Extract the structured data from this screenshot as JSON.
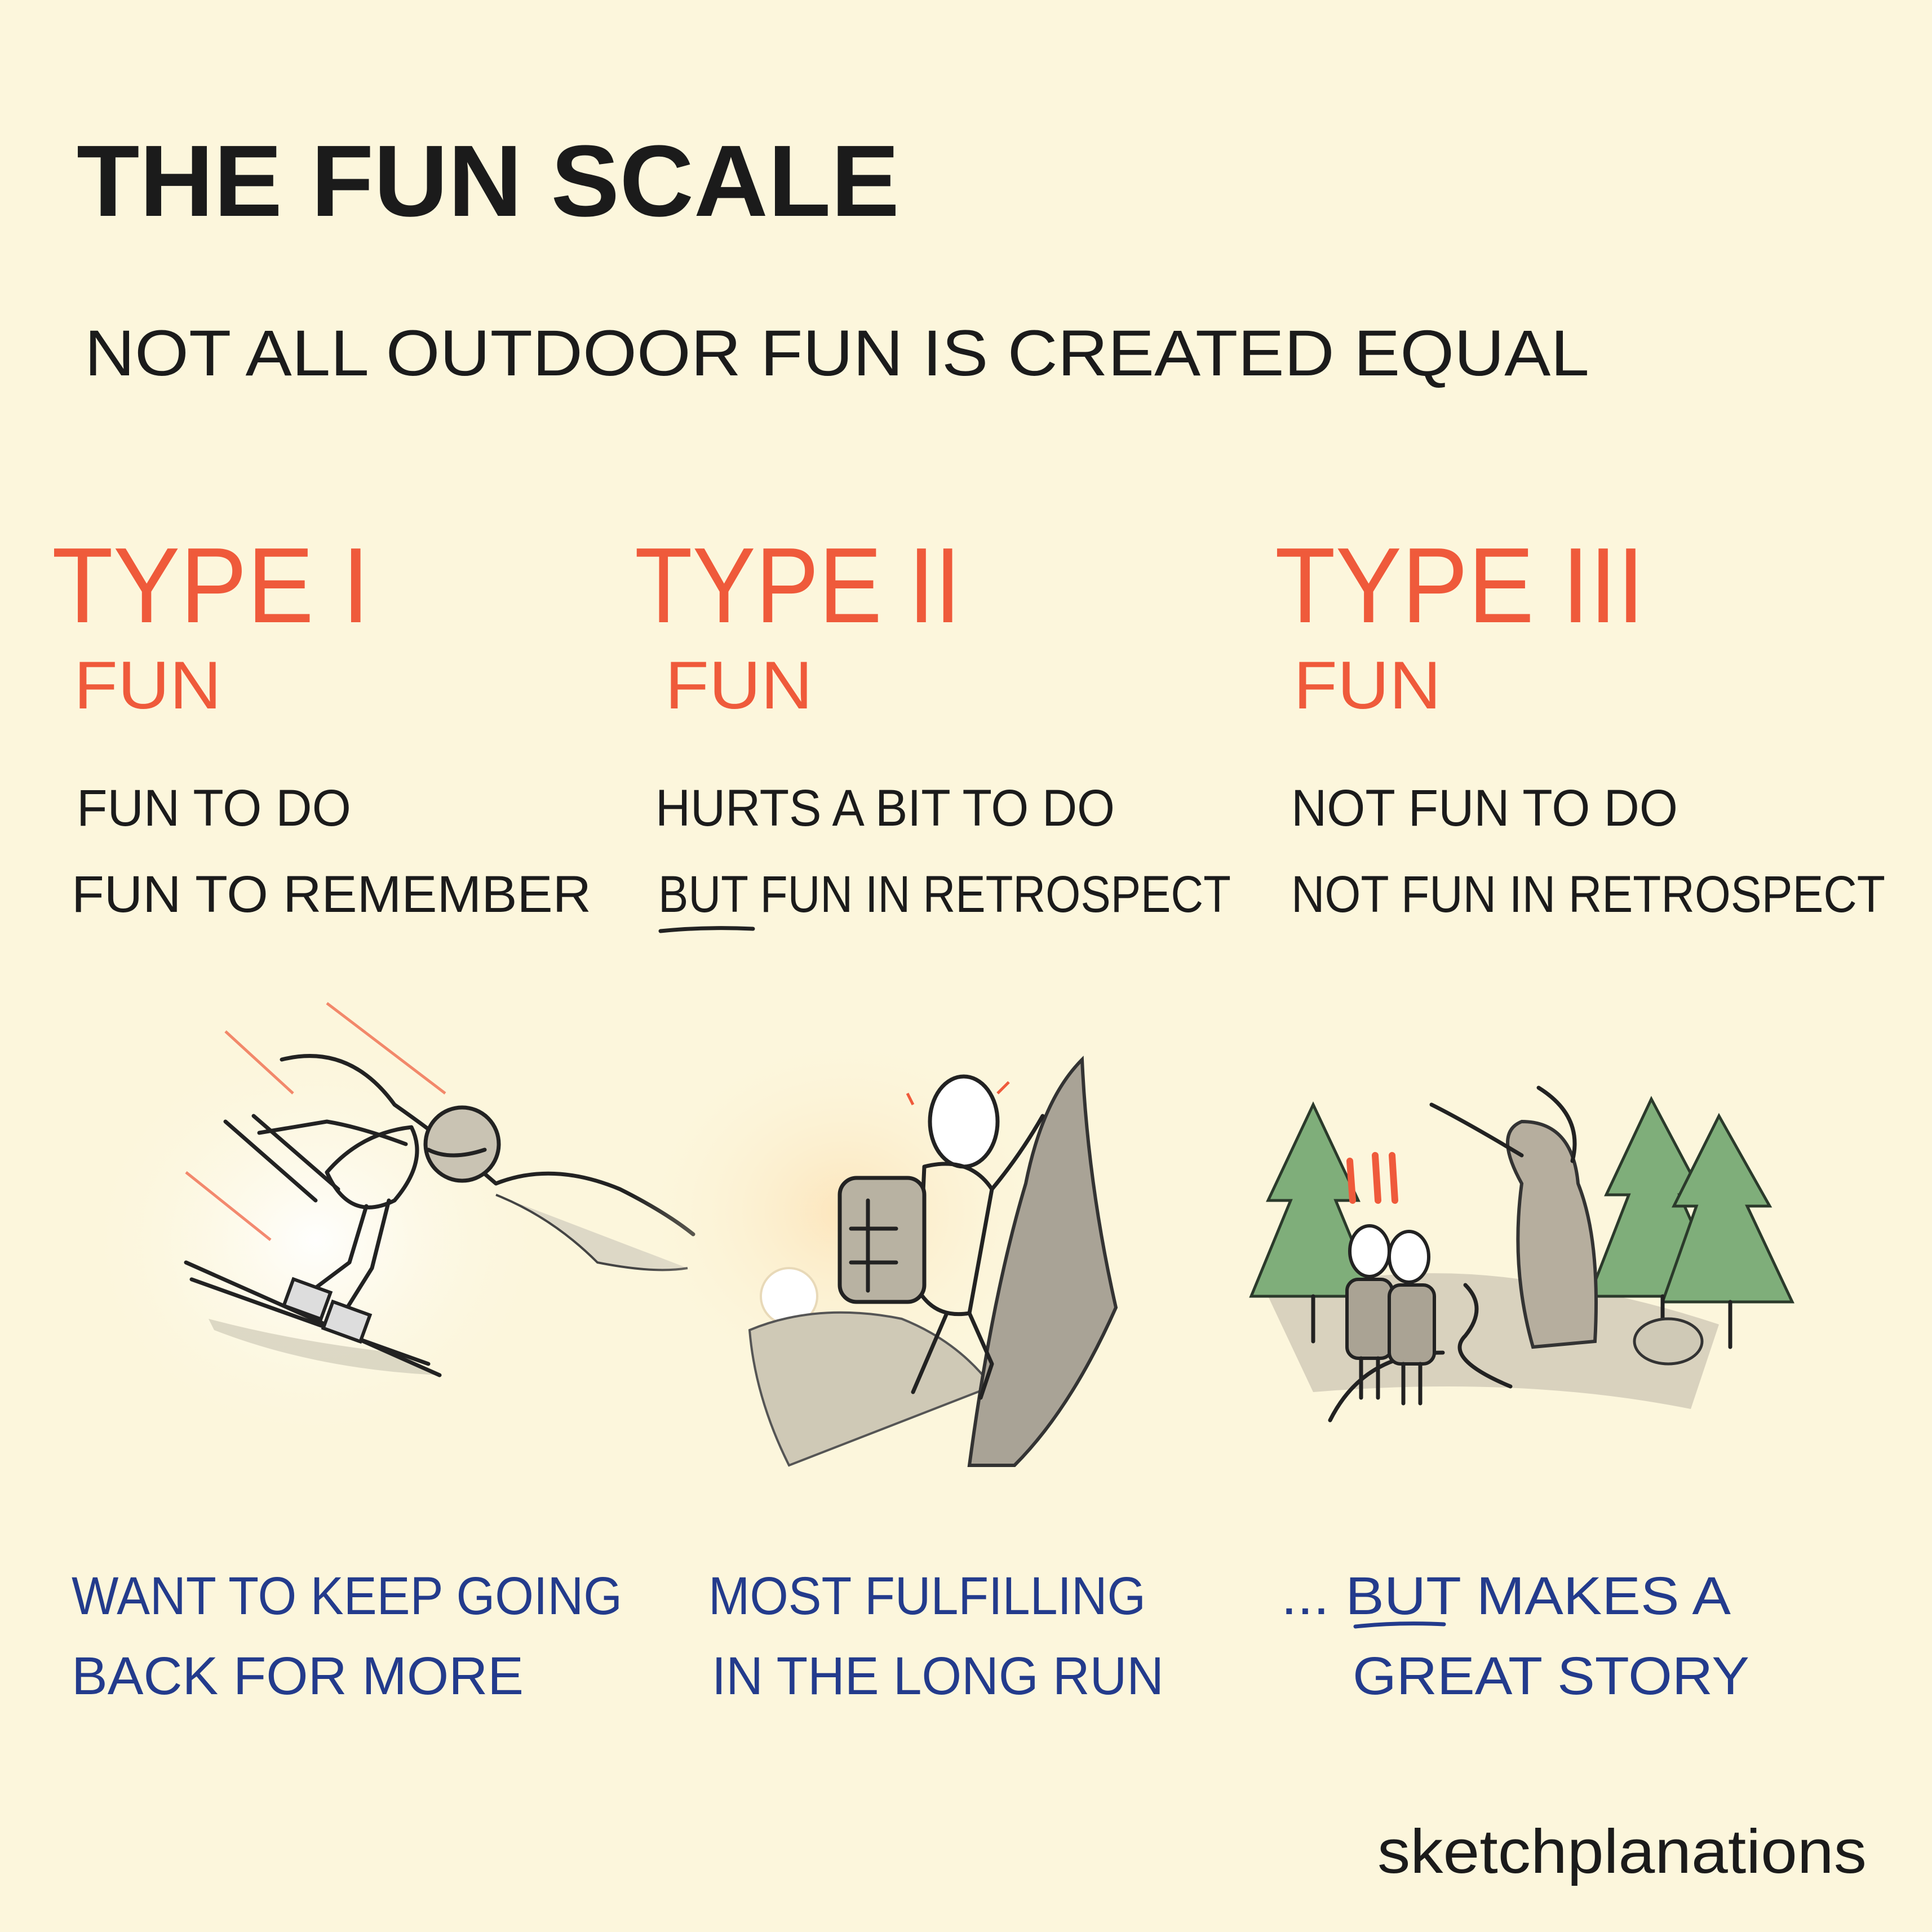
{
  "header": {
    "title": "THE FUN SCALE",
    "subtitle": "NOT ALL OUTDOOR FUN IS CREATED EQUAL"
  },
  "columns": [
    {
      "type": "TYPE I",
      "label": "FUN",
      "lines": [
        "FUN TO DO",
        "FUN TO REMEMBER"
      ],
      "caption": [
        "WANT TO KEEP GOING",
        "BACK FOR MORE"
      ]
    },
    {
      "type": "TYPE II",
      "label": "FUN",
      "lines": [
        "HURTS A BIT TO DO",
        "BUT FUN IN RETROSPECT"
      ],
      "caption": [
        "MOST FULFILLING",
        "IN THE LONG RUN"
      ]
    },
    {
      "type": "TYPE III",
      "label": "FUN",
      "lines": [
        "NOT FUN TO DO",
        "NOT FUN IN RETROSPECT"
      ],
      "caption": [
        "... BUT MAKES A",
        "GREAT STORY"
      ]
    }
  ],
  "footer": {
    "credit": "sketchplanations"
  }
}
